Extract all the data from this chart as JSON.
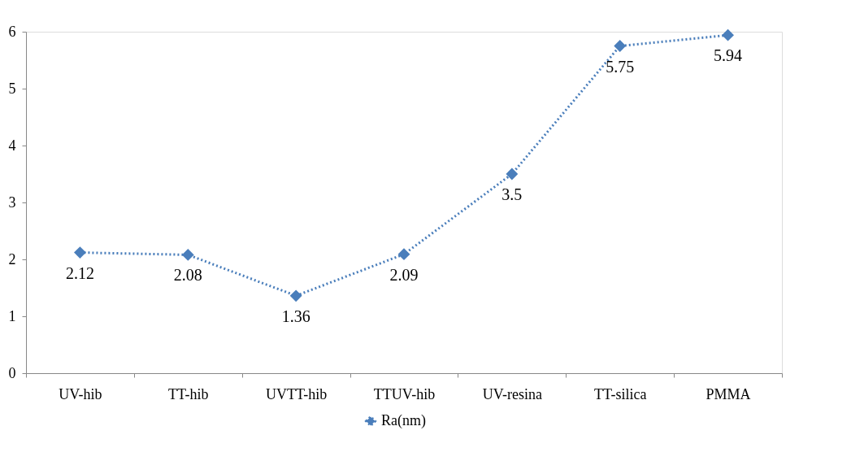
{
  "chart_data": {
    "type": "line",
    "categories": [
      "UV-hib",
      "TT-hib",
      "UVTT-hib",
      "TTUV-hib",
      "UV-resina",
      "TT-silica",
      "PMMA"
    ],
    "series": [
      {
        "name": "Ra(nm)",
        "color": "#4a7ebb",
        "values": [
          2.12,
          2.08,
          1.36,
          2.09,
          3.5,
          5.75,
          5.94
        ]
      }
    ],
    "ylim": [
      0,
      6
    ],
    "yticks": [
      0,
      1,
      2,
      3,
      4,
      5,
      6
    ],
    "grid": false,
    "legend": "bottom",
    "marker": "diamond",
    "line_style": "dotted",
    "data_labels": true
  }
}
